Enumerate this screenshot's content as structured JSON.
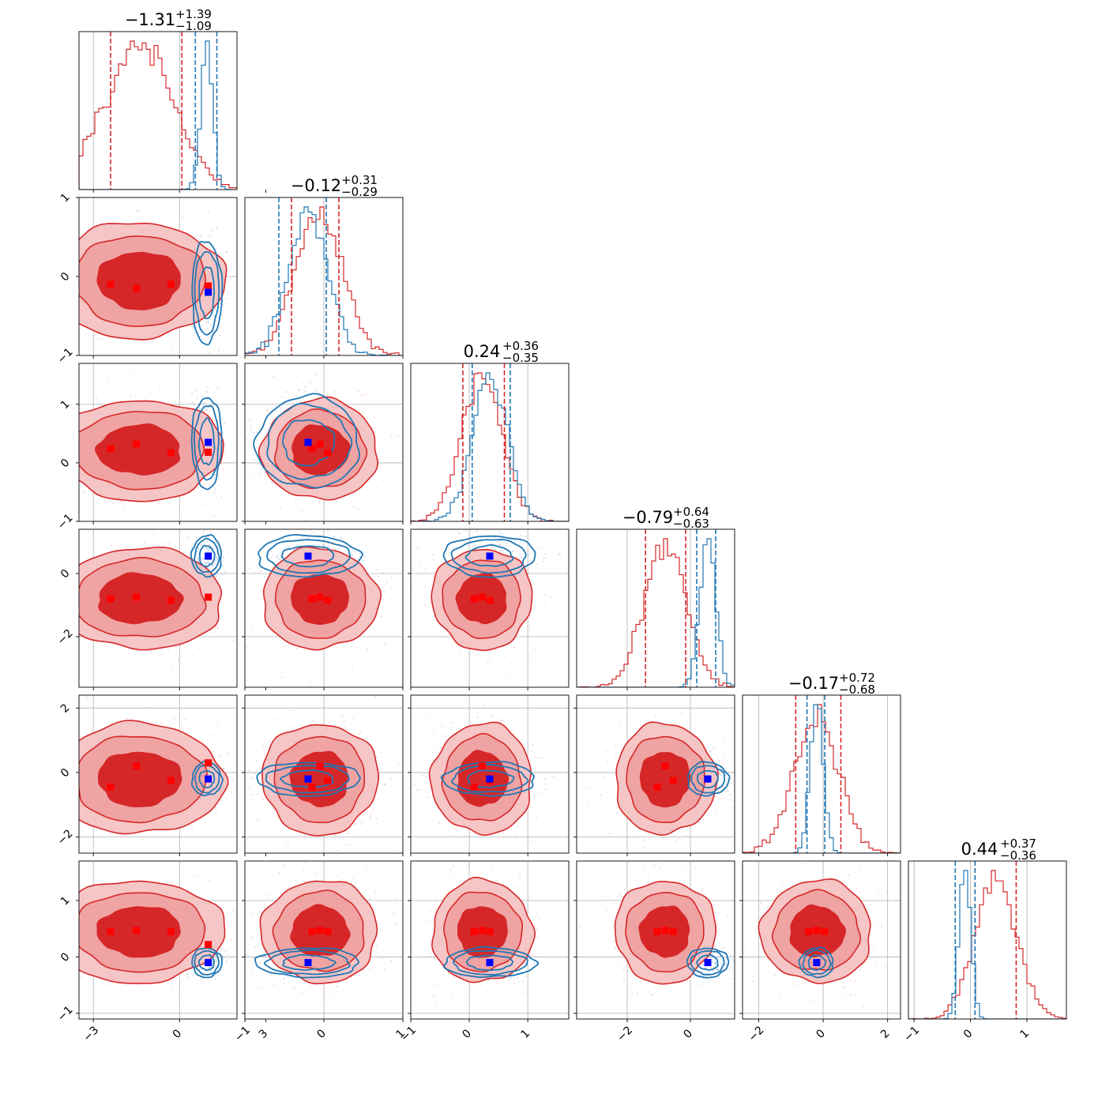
{
  "chart_data": {
    "type": "corner",
    "n_params": 6,
    "colors": {
      "red": "#d62728",
      "red_fill": "#f0a3a3",
      "red_dark": "#d62728",
      "blue": "#1f77b4",
      "marker_red": "#ff0000",
      "marker_blue": "#0000ff",
      "grid": "#b0b0b0"
    },
    "ranges": [
      [
        -3.5,
        2.0
      ],
      [
        -1.0,
        1.0
      ],
      [
        -1.0,
        1.7
      ],
      [
        -3.6,
        1.4
      ],
      [
        -2.5,
        2.4
      ],
      [
        -1.1,
        1.7
      ]
    ],
    "ticks": [
      [
        -3,
        0,
        3
      ],
      [
        -1,
        0,
        1
      ],
      [
        -1,
        0,
        1
      ],
      [
        -2,
        0
      ],
      [
        -2,
        0,
        2
      ],
      [
        -1,
        0,
        1
      ]
    ],
    "ytick_overrides": {
      "1": [
        -1,
        0,
        1
      ],
      "2": [
        -1,
        0,
        1
      ],
      "3": [
        -2,
        0
      ],
      "4": [
        -2,
        0,
        2
      ],
      "5": [
        -1,
        0,
        1
      ]
    },
    "titles": [
      {
        "median": "−1.31",
        "plus": "+1.39",
        "minus": "−1.09"
      },
      {
        "median": "−0.12",
        "plus": "+0.31",
        "minus": "−0.29"
      },
      {
        "median": "0.24",
        "plus": "+0.36",
        "minus": "−0.35"
      },
      {
        "median": "−0.79",
        "plus": "+0.64",
        "minus": "−0.63"
      },
      {
        "median": "−0.17",
        "plus": "+0.72",
        "minus": "−0.68"
      },
      {
        "median": "0.44",
        "plus": "+0.37",
        "minus": "−0.36"
      }
    ],
    "red_dist": {
      "mean": [
        -1.4,
        -0.05,
        0.22,
        -0.8,
        -0.2,
        0.45
      ],
      "sd": [
        1.2,
        0.3,
        0.35,
        0.65,
        0.7,
        0.37
      ],
      "quantiles": [
        [
          -2.4,
          0.08
        ],
        [
          -0.41,
          0.19
        ],
        [
          -0.11,
          0.6
        ],
        [
          -1.42,
          -0.15
        ],
        [
          -0.85,
          0.55
        ],
        [
          0.08,
          0.81
        ]
      ]
    },
    "blue_dist": {
      "mean": [
        0.95,
        -0.2,
        0.35,
        0.55,
        -0.2,
        -0.1
      ],
      "sd": [
        0.2,
        0.25,
        0.3,
        0.25,
        0.2,
        0.1
      ],
      "quantiles": [
        [
          0.55,
          1.3
        ],
        [
          -0.57,
          0.03
        ],
        [
          0.05,
          0.7
        ],
        [
          0.2,
          0.8
        ],
        [
          -0.5,
          0.05
        ],
        [
          -0.27,
          0.08
        ]
      ]
    },
    "red_markers": [
      [],
      [
        [
          -2.4,
          -0.1
        ],
        [
          -1.5,
          -0.15
        ],
        [
          -0.3,
          -0.1
        ],
        [
          1.0,
          -0.12
        ]
      ],
      [
        [
          -2.4,
          0.24
        ],
        [
          -1.5,
          0.32
        ],
        [
          -0.3,
          0.17
        ],
        [
          1.0,
          0.18
        ],
        [
          -0.1,
          0.2
        ],
        [
          -0.15,
          0.26
        ]
      ],
      [
        [
          -2.4,
          -0.8
        ],
        [
          -1.5,
          -0.75
        ],
        [
          -0.3,
          -0.85
        ],
        [
          1.0,
          -0.75
        ],
        [
          -0.15,
          -0.75
        ],
        [
          -0.1,
          -0.85
        ],
        [
          0.2,
          -0.8
        ],
        [
          0.3,
          -0.75
        ]
      ],
      [
        [
          -2.4,
          -0.45
        ],
        [
          -1.5,
          0.2
        ],
        [
          -0.3,
          -0.25
        ],
        [
          1.0,
          0.3
        ],
        [
          -0.1,
          0.3
        ],
        [
          -0.15,
          -0.25
        ],
        [
          0.2,
          0.3
        ],
        [
          0.3,
          -0.45
        ],
        [
          -0.8,
          0.25
        ],
        [
          -0.9,
          -0.2
        ],
        [
          -0.75,
          -0.45
        ]
      ],
      [
        [
          -2.4,
          0.45
        ],
        [
          -1.5,
          0.47
        ],
        [
          -0.3,
          0.45
        ],
        [
          1.0,
          0.22
        ],
        [
          -0.1,
          0.45
        ],
        [
          -0.15,
          0.22
        ],
        [
          0.2,
          0.45
        ],
        [
          0.3,
          0.22
        ],
        [
          -0.85,
          0.45
        ],
        [
          -0.8,
          0.22
        ],
        [
          -0.5,
          0.45
        ],
        [
          0.15,
          0.45
        ],
        [
          0.3,
          0.22
        ]
      ]
    ],
    "blue_markers": [
      [],
      [
        [
          1.0,
          -0.27
        ]
      ],
      [
        [
          1.0,
          0.35
        ],
        [
          -0.2,
          0.35
        ]
      ],
      [
        [
          1.0,
          0.6
        ],
        [
          -0.2,
          0.6
        ],
        [
          0.35,
          0.6
        ]
      ],
      [
        [
          1.0,
          -0.2
        ],
        [
          -0.2,
          -0.2
        ],
        [
          0.35,
          -0.2
        ],
        [
          0.55,
          -0.2
        ]
      ],
      [
        [
          1.0,
          -0.08
        ],
        [
          -0.2,
          -0.08
        ],
        [
          0.35,
          -0.08
        ],
        [
          0.55,
          -0.08
        ],
        [
          -0.2,
          -0.08
        ]
      ]
    ]
  }
}
